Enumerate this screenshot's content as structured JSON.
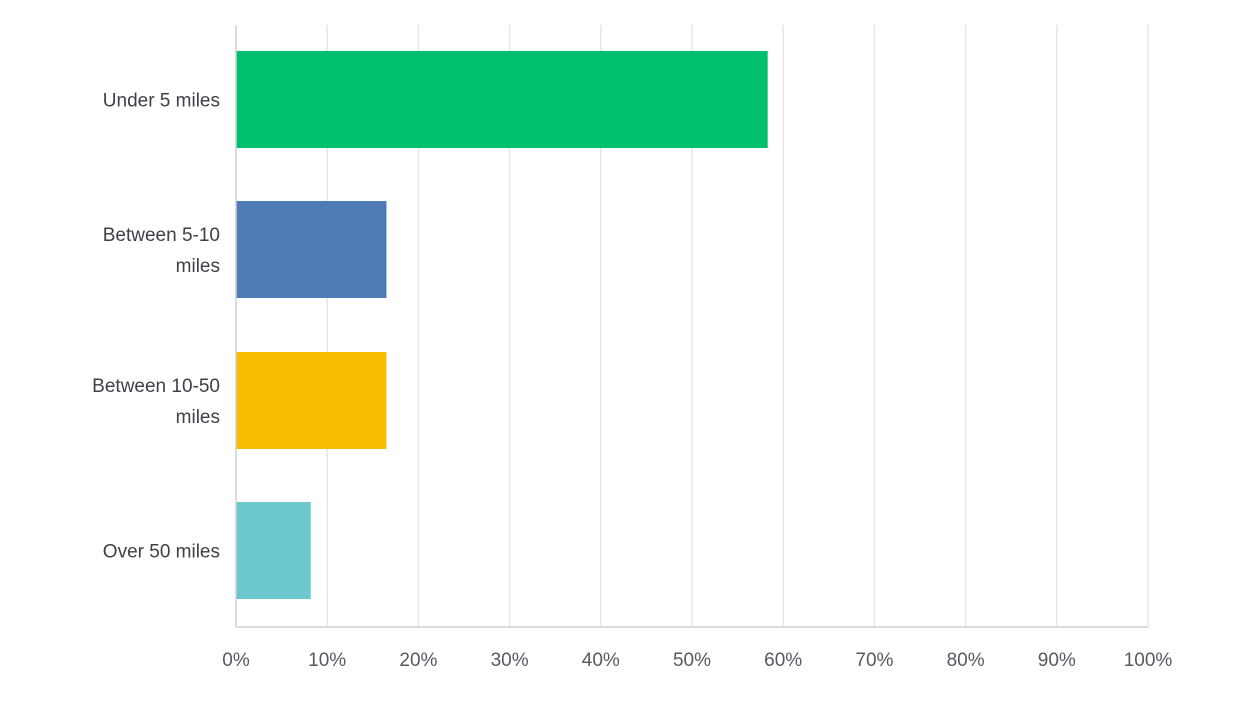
{
  "chart_data": {
    "type": "bar",
    "orientation": "horizontal",
    "categories": [
      [
        "Under 5 miles"
      ],
      [
        "Between 5-10",
        "miles"
      ],
      [
        "Between 10-50",
        "miles"
      ],
      [
        "Over 50 miles"
      ]
    ],
    "values": [
      58.3,
      16.5,
      16.5,
      8.2
    ],
    "bar_colors": [
      "#00bf6f",
      "#507cb6",
      "#f9be00",
      "#6bc8cd"
    ],
    "x_ticks": [
      "0%",
      "10%",
      "20%",
      "30%",
      "40%",
      "50%",
      "60%",
      "70%",
      "80%",
      "90%",
      "100%"
    ],
    "xlim": [
      0,
      100
    ],
    "grid": true,
    "gridline_color": "#e5e5e5",
    "axis_color": "#cfd1d4",
    "title": "",
    "xlabel": "",
    "ylabel": ""
  }
}
